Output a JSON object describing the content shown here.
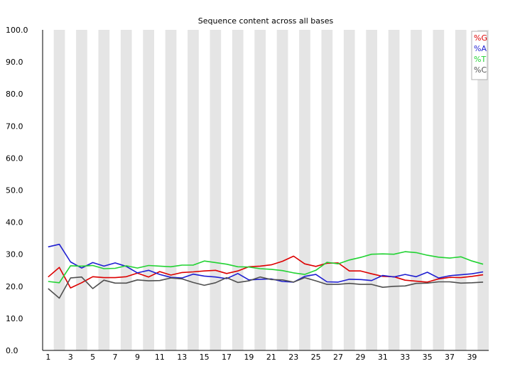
{
  "chart_data": {
    "type": "line",
    "title": "Sequence content across all bases",
    "xlabel": "",
    "ylabel": "",
    "ylim": [
      0,
      100
    ],
    "y_ticks": [
      "0.0",
      "10.0",
      "20.0",
      "30.0",
      "40.0",
      "50.0",
      "60.0",
      "70.0",
      "80.0",
      "90.0",
      "100.0"
    ],
    "x": [
      1,
      2,
      3,
      4,
      5,
      6,
      7,
      8,
      9,
      10,
      11,
      12,
      13,
      14,
      15,
      16,
      17,
      18,
      19,
      20,
      21,
      22,
      23,
      24,
      25,
      26,
      27,
      28,
      29,
      30,
      31,
      32,
      33,
      34,
      35,
      36,
      37,
      38,
      39,
      40
    ],
    "x_ticks": [
      "1",
      "3",
      "5",
      "7",
      "9",
      "11",
      "13",
      "15",
      "17",
      "19",
      "21",
      "23",
      "25",
      "27",
      "29",
      "31",
      "33",
      "35",
      "37",
      "39"
    ],
    "grid": "alternating vertical bands",
    "legend_position": "top-right",
    "series": [
      {
        "name": "%G",
        "color": "#dd0000",
        "values": [
          22.9,
          25.9,
          19.5,
          21.1,
          23.0,
          22.7,
          22.7,
          23.0,
          24.1,
          22.9,
          24.6,
          23.5,
          24.3,
          24.5,
          24.8,
          25.0,
          24.0,
          24.8,
          26.1,
          26.3,
          26.7,
          27.8,
          29.4,
          27.0,
          26.2,
          27.2,
          27.3,
          24.8,
          24.8,
          23.9,
          23.1,
          23.0,
          21.9,
          21.6,
          21.3,
          22.3,
          22.8,
          22.7,
          23.1,
          23.6
        ]
      },
      {
        "name": "%A",
        "color": "#1f1fd1",
        "values": [
          32.3,
          33.1,
          27.6,
          25.7,
          27.4,
          26.3,
          27.3,
          26.2,
          24.2,
          25.0,
          23.7,
          22.8,
          22.6,
          23.8,
          23.2,
          22.9,
          22.4,
          24.0,
          22.0,
          22.2,
          22.3,
          21.5,
          21.3,
          23.1,
          23.7,
          21.4,
          21.3,
          22.2,
          22.1,
          21.8,
          23.4,
          22.9,
          23.7,
          23.0,
          24.4,
          22.6,
          23.3,
          23.6,
          23.9,
          24.5
        ]
      },
      {
        "name": "%T",
        "color": "#22d333",
        "values": [
          21.5,
          21.1,
          26.4,
          26.3,
          26.5,
          25.5,
          25.6,
          26.4,
          25.7,
          26.5,
          26.3,
          26.1,
          26.6,
          26.6,
          27.9,
          27.4,
          26.9,
          26.1,
          26.0,
          25.5,
          25.3,
          24.9,
          24.2,
          23.7,
          25.0,
          27.5,
          27.0,
          28.2,
          29.0,
          30.0,
          30.1,
          30.0,
          30.8,
          30.5,
          29.7,
          29.1,
          28.8,
          29.2,
          27.9,
          26.9
        ]
      },
      {
        "name": "%C",
        "color": "#505050",
        "values": [
          19.3,
          16.3,
          22.6,
          22.9,
          19.3,
          21.9,
          21.0,
          21.0,
          22.0,
          21.7,
          21.8,
          22.6,
          22.3,
          21.2,
          20.3,
          21.1,
          22.7,
          21.2,
          21.7,
          22.9,
          22.1,
          22.0,
          21.3,
          22.7,
          21.7,
          20.6,
          20.6,
          20.9,
          20.6,
          20.6,
          19.7,
          20.0,
          20.1,
          20.9,
          21.0,
          21.4,
          21.4,
          21.0,
          21.1,
          21.3
        ]
      }
    ]
  }
}
